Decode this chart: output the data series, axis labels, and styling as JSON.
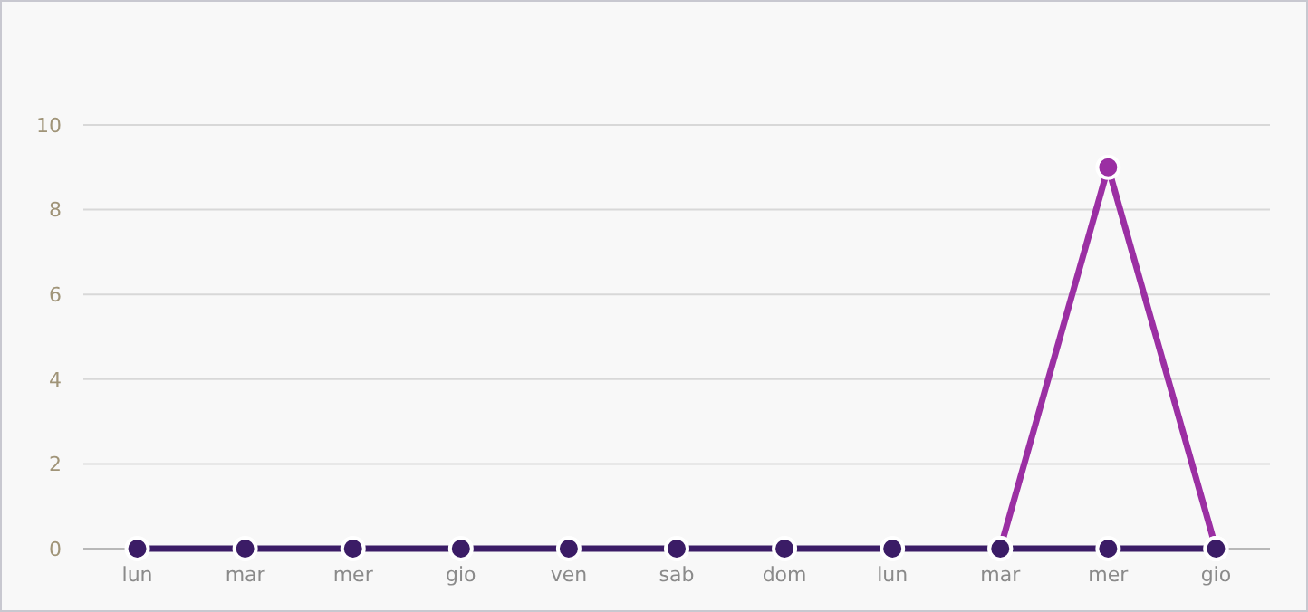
{
  "chart_data": {
    "type": "line",
    "categories": [
      "lun",
      "mar",
      "mer",
      "gio",
      "ven",
      "sab",
      "dom",
      "lun",
      "mar",
      "mer",
      "gio"
    ],
    "series": [
      {
        "color": "#9b2fa3",
        "values": [
          null,
          null,
          null,
          null,
          null,
          null,
          null,
          null,
          0,
          9,
          0
        ]
      },
      {
        "color": "#3b1c66",
        "values": [
          0,
          0,
          0,
          0,
          0,
          0,
          0,
          0,
          0,
          0,
          0
        ]
      }
    ],
    "ylim": [
      0,
      10
    ],
    "yticks": [
      0,
      2,
      4,
      6,
      8,
      10
    ],
    "grid": "y",
    "marker": "circle",
    "line_style": "solid"
  }
}
